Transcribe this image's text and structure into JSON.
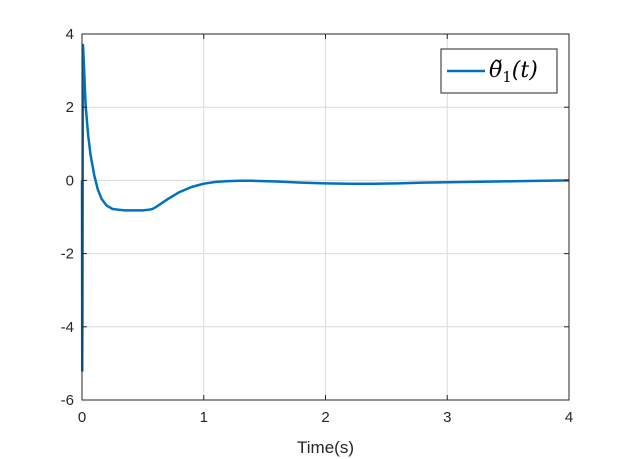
{
  "chart_data": {
    "type": "line",
    "title": "",
    "xlabel": "Time(s)",
    "ylabel": "",
    "xlim": [
      0,
      4
    ],
    "ylim": [
      -6,
      4
    ],
    "xticks": [
      0,
      1,
      2,
      3,
      4
    ],
    "yticks": [
      -6,
      -4,
      -2,
      0,
      2,
      4
    ],
    "xtick_labels": [
      "0",
      "1",
      "2",
      "3",
      "4"
    ],
    "ytick_labels": [
      "-6",
      "-4",
      "-2",
      "0",
      "2",
      "4"
    ],
    "grid": true,
    "legend_position": "top-right",
    "colors": {
      "series": "#0072BD",
      "grid": "#dcdcdc",
      "axis": "#262626"
    },
    "series": [
      {
        "name": "θ̃1(t)",
        "x": [
          0,
          0.002,
          0.004,
          0.006,
          0.008,
          0.01,
          0.02,
          0.03,
          0.05,
          0.07,
          0.1,
          0.13,
          0.16,
          0.2,
          0.25,
          0.3,
          0.35,
          0.4,
          0.45,
          0.5,
          0.55,
          0.58,
          0.62,
          0.7,
          0.8,
          0.9,
          1.0,
          1.1,
          1.2,
          1.3,
          1.4,
          1.6,
          1.8,
          2.0,
          2.2,
          2.4,
          2.6,
          2.8,
          3.0,
          3.2,
          3.4,
          3.6,
          3.8,
          4.0
        ],
        "y": [
          0,
          -5.2,
          -3.5,
          0.5,
          3.7,
          3.6,
          2.8,
          2.05,
          1.25,
          0.7,
          0.15,
          -0.25,
          -0.5,
          -0.68,
          -0.78,
          -0.8,
          -0.82,
          -0.82,
          -0.82,
          -0.82,
          -0.8,
          -0.78,
          -0.7,
          -0.52,
          -0.32,
          -0.18,
          -0.09,
          -0.04,
          -0.02,
          -0.01,
          -0.01,
          -0.03,
          -0.06,
          -0.08,
          -0.09,
          -0.09,
          -0.08,
          -0.06,
          -0.05,
          -0.04,
          -0.03,
          -0.02,
          -0.01,
          0.0
        ]
      }
    ]
  },
  "legend": {
    "symbol": "θ̃",
    "subscript": "1",
    "argument": "(t)"
  }
}
